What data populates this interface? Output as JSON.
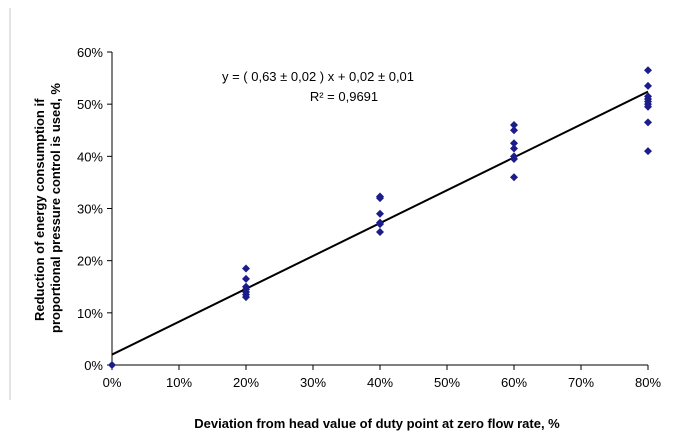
{
  "chart_data": {
    "type": "scatter",
    "xlabel": "Deviation from head value of duty point at zero flow rate, %",
    "ylabel_lines": [
      "Reduction of energy consumption if",
      "proportional pressure control is used, %"
    ],
    "xlim": [
      0,
      80
    ],
    "ylim": [
      0,
      60
    ],
    "x_ticks": [
      0,
      10,
      20,
      30,
      40,
      50,
      60,
      70,
      80
    ],
    "x_tick_labels": [
      "0%",
      "10%",
      "20%",
      "30%",
      "40%",
      "50%",
      "60%",
      "70%",
      "80%"
    ],
    "y_ticks": [
      0,
      10,
      20,
      30,
      40,
      50,
      60
    ],
    "y_tick_labels": [
      "0%",
      "10%",
      "20%",
      "30%",
      "40%",
      "50%",
      "60%"
    ],
    "grid": false,
    "points": [
      {
        "x": 0,
        "y": 0
      },
      {
        "x": 20,
        "y": 18.5
      },
      {
        "x": 20,
        "y": 16.5
      },
      {
        "x": 20,
        "y": 15
      },
      {
        "x": 20,
        "y": 14.5
      },
      {
        "x": 20,
        "y": 14
      },
      {
        "x": 20,
        "y": 13.5
      },
      {
        "x": 20,
        "y": 13
      },
      {
        "x": 40,
        "y": 32.3
      },
      {
        "x": 40,
        "y": 32
      },
      {
        "x": 40,
        "y": 29
      },
      {
        "x": 40,
        "y": 27.3
      },
      {
        "x": 40,
        "y": 27
      },
      {
        "x": 40,
        "y": 25.5
      },
      {
        "x": 60,
        "y": 46
      },
      {
        "x": 60,
        "y": 45
      },
      {
        "x": 60,
        "y": 42.5
      },
      {
        "x": 60,
        "y": 41.5
      },
      {
        "x": 60,
        "y": 40
      },
      {
        "x": 60,
        "y": 39.5
      },
      {
        "x": 60,
        "y": 36
      },
      {
        "x": 80,
        "y": 56.5
      },
      {
        "x": 80,
        "y": 53.5
      },
      {
        "x": 80,
        "y": 51.5
      },
      {
        "x": 80,
        "y": 51
      },
      {
        "x": 80,
        "y": 50.5
      },
      {
        "x": 80,
        "y": 50
      },
      {
        "x": 80,
        "y": 49.5
      },
      {
        "x": 80,
        "y": 46.5
      },
      {
        "x": 80,
        "y": 41
      }
    ],
    "trendline": {
      "slope": 0.63,
      "intercept": 2,
      "x_range": [
        0,
        80
      ]
    },
    "annotations": {
      "equation": "y = ( 0,63 ± 0,02 ) x + 0,02 ± 0,01",
      "r_squared": "R² = 0,9691"
    },
    "colors": {
      "marker": "#1c1c8a",
      "trendline": "#000000",
      "axis": "#000000"
    }
  }
}
